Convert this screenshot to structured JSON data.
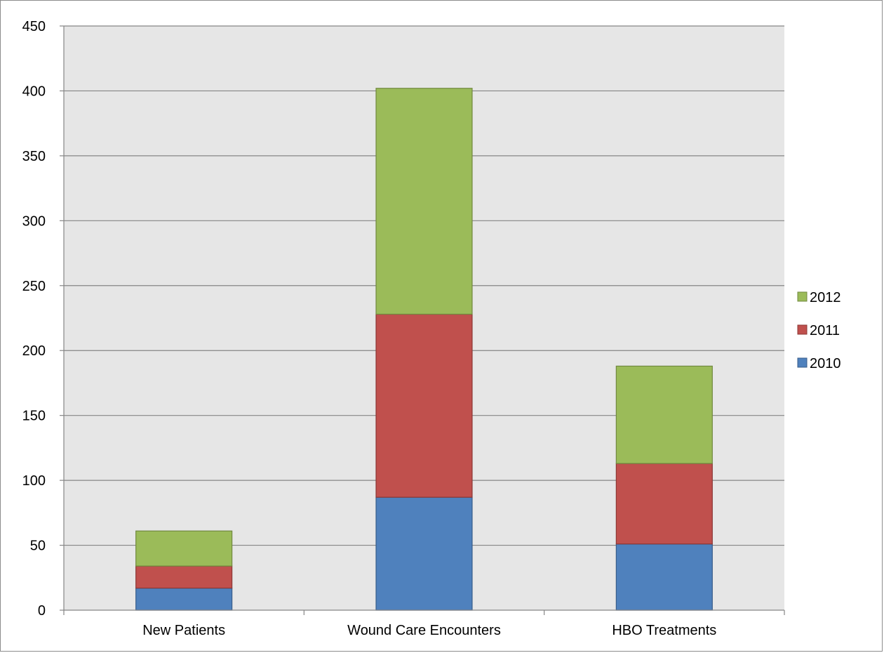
{
  "chart_data": {
    "type": "bar",
    "stacked": true,
    "title": "",
    "xlabel": "",
    "ylabel": "",
    "categories": [
      "New Patients",
      "Wound Care Encounters",
      "HBO Treatments"
    ],
    "series": [
      {
        "name": "2010",
        "color": "#4F81BD",
        "values": [
          17,
          87,
          51
        ]
      },
      {
        "name": "2011",
        "color": "#C0504D",
        "values": [
          17,
          141,
          62
        ]
      },
      {
        "name": "2012",
        "color": "#9BBB59",
        "values": [
          27,
          174,
          75
        ]
      }
    ],
    "ylim": [
      0,
      450
    ],
    "yticks": [
      "0",
      "50",
      "100",
      "150",
      "200",
      "250",
      "300",
      "350",
      "400",
      "450"
    ],
    "grid": true,
    "plot_background": "#E6E6E6",
    "legend_placement": "right",
    "legend_order": [
      "2012",
      "2011",
      "2010"
    ]
  }
}
